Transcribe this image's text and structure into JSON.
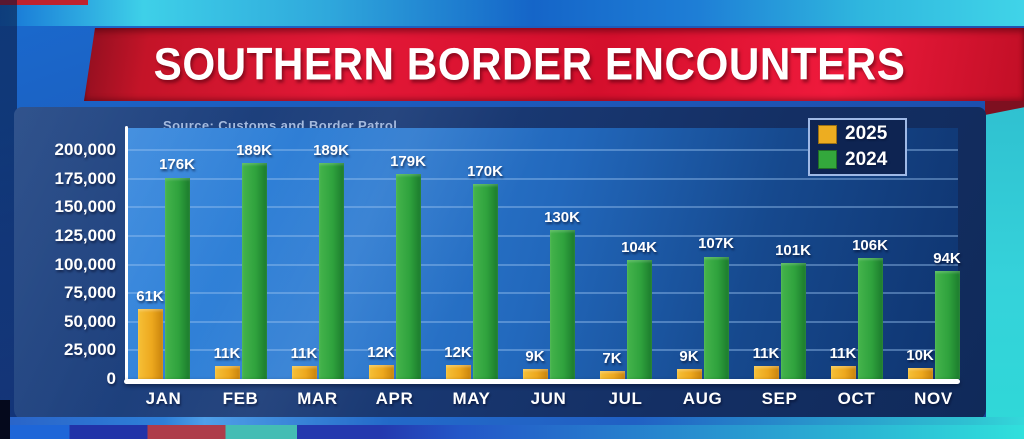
{
  "title": "SOUTHERN BORDER ENCOUNTERS",
  "source": "Source: Customs and Border Patrol",
  "legend": [
    {
      "label": "2025",
      "color": "#edad21"
    },
    {
      "label": "2024",
      "color": "#33a83c"
    }
  ],
  "chart_data": {
    "type": "bar",
    "title": "SOUTHERN BORDER ENCOUNTERS",
    "source": "Source: Customs and Border Patrol",
    "categories": [
      "JAN",
      "FEB",
      "MAR",
      "APR",
      "MAY",
      "JUN",
      "JUL",
      "AUG",
      "SEP",
      "OCT",
      "NOV"
    ],
    "series": [
      {
        "name": "2025",
        "color": "#edad21",
        "values": [
          61000,
          11000,
          11000,
          12000,
          12000,
          9000,
          7000,
          9000,
          11000,
          11000,
          10000
        ],
        "labels": [
          "61K",
          "11K",
          "11K",
          "12K",
          "12K",
          "9K",
          "7K",
          "9K",
          "11K",
          "11K",
          "10K"
        ]
      },
      {
        "name": "2024",
        "color": "#33a83c",
        "values": [
          176000,
          189000,
          189000,
          179000,
          170000,
          130000,
          104000,
          107000,
          101000,
          106000,
          94000
        ],
        "labels": [
          "176K",
          "189K",
          "189K",
          "179K",
          "170K",
          "130K",
          "104K",
          "107K",
          "101K",
          "106K",
          "94K"
        ]
      }
    ],
    "ylim": [
      0,
      200000
    ],
    "yticks": [
      0,
      25000,
      50000,
      75000,
      100000,
      125000,
      150000,
      175000,
      200000
    ],
    "ytick_labels": [
      "0",
      "25,000",
      "50,000",
      "75,000",
      "100,000",
      "125,000",
      "150,000",
      "175,000",
      "200,000"
    ],
    "grid": true,
    "legend_position": "top-right"
  },
  "colors": {
    "banner_red": "#d40f2c",
    "panel_navy": "#16336c",
    "plot_blue": "#2268bc",
    "bar_2025": "#edad21",
    "bar_2024": "#33a83c",
    "teal_band": "#2fc0d0",
    "axis_white": "#ffffff"
  }
}
